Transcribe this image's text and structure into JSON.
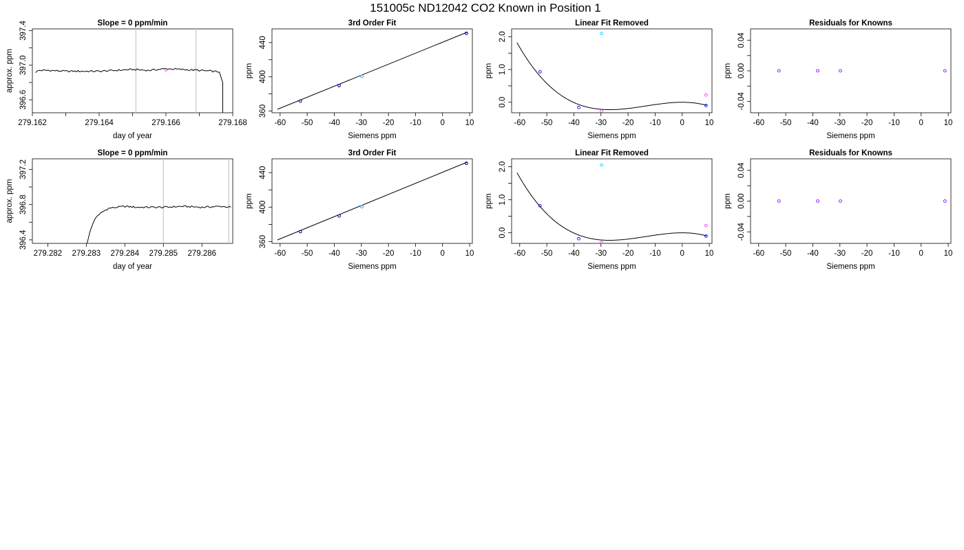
{
  "figure_title": "151005c     ND12042   CO2 Known in Position  1",
  "colors": {
    "trace": "#000000",
    "fit": "#000000",
    "vline": "#c8c8c8",
    "blue": "#0000ff",
    "cyan": "#00c8ff",
    "magenta": "#e040e0",
    "purple": "#8000ff",
    "navy": "#00008b"
  },
  "chart_data": [
    {
      "type": "line",
      "title": "Slope =  0  ppm/min",
      "xlabel": "day of year",
      "ylabel": "approx. ppm",
      "xlim": [
        279.162,
        279.168
      ],
      "ylim": [
        396.45,
        397.42
      ],
      "xticks": [
        279.162,
        279.164,
        279.166,
        279.168
      ],
      "xtick_labels": [
        "279.162",
        "279.164",
        "279.166",
        "279.168"
      ],
      "yticks": [
        396.6,
        397.0,
        397.4
      ],
      "ytick_labels": [
        "396.6",
        "397.0",
        "397.4"
      ],
      "minor_xticks": [
        279.163,
        279.165,
        279.167
      ],
      "minor_yticks": [
        396.8,
        397.2
      ],
      "vlines": [
        279.1651,
        279.1669
      ],
      "series": [
        {
          "x": [
            279.1621,
            279.1622,
            279.1625,
            279.163,
            279.1635,
            279.164,
            279.1645,
            279.165,
            279.1655,
            279.166,
            279.1665,
            279.167,
            279.1674,
            279.1676,
            279.1677,
            279.1677
          ],
          "values": [
            396.92,
            396.94,
            396.94,
            396.93,
            396.93,
            396.93,
            396.94,
            396.95,
            396.94,
            396.96,
            396.95,
            396.94,
            396.93,
            396.92,
            396.8,
            396.45
          ]
        }
      ],
      "wiggle": 0.02,
      "markers": [
        {
          "x": 279.166,
          "y": 396.945,
          "color": "magenta"
        }
      ]
    },
    {
      "type": "scatter",
      "title": "3rd Order Fit",
      "xlabel": "Siemens ppm",
      "ylabel": "ppm",
      "xlim": [
        -63,
        11
      ],
      "ylim": [
        358,
        456
      ],
      "xticks": [
        -60,
        -50,
        -40,
        -30,
        -20,
        -10,
        0,
        10
      ],
      "xtick_labels": [
        "-60",
        "-50",
        "-40",
        "-30",
        "-20",
        "-10",
        "0",
        "10"
      ],
      "yticks": [
        360,
        400,
        440
      ],
      "ytick_labels": [
        "360",
        "400",
        "440"
      ],
      "minor_yticks": [
        380,
        420
      ],
      "curve": {
        "type": "line",
        "p0": [
          -61,
          362
        ],
        "p1": [
          9,
          452
        ]
      },
      "points": [
        {
          "x": -52.5,
          "y": 371.6,
          "color": "blue"
        },
        {
          "x": -52.5,
          "y": 371.6,
          "color": "navy"
        },
        {
          "x": -38.2,
          "y": 389.8,
          "color": "blue"
        },
        {
          "x": -38.2,
          "y": 389.8,
          "color": "navy"
        },
        {
          "x": -29.8,
          "y": 400.5,
          "color": "magenta"
        },
        {
          "x": -29.8,
          "y": 400.5,
          "color": "cyan"
        },
        {
          "x": 8.8,
          "y": 450.8,
          "color": "blue"
        },
        {
          "x": 8.8,
          "y": 450.8,
          "color": "navy"
        }
      ]
    },
    {
      "type": "scatter",
      "title": "Linear Fit Removed",
      "xlabel": "Siemens ppm",
      "ylabel": "ppm",
      "xlim": [
        -63,
        11
      ],
      "ylim": [
        -0.32,
        2.24
      ],
      "xticks": [
        -60,
        -50,
        -40,
        -30,
        -20,
        -10,
        0,
        10
      ],
      "xtick_labels": [
        "-60",
        "-50",
        "-40",
        "-30",
        "-20",
        "-10",
        "0",
        "10"
      ],
      "yticks": [
        0,
        1,
        2
      ],
      "ytick_labels": [
        "0.0",
        "1.0",
        "2.0"
      ],
      "minor_yticks": [
        0.5,
        1.5
      ],
      "curve": {
        "type": "cubic",
        "from": -61,
        "to": 9,
        "coef": [
          0,
          0,
          -0.000945,
          -2.35e-05
        ]
      },
      "points": [
        {
          "x": -52.5,
          "y": 0.93,
          "color": "blue"
        },
        {
          "x": -38.2,
          "y": -0.16,
          "color": "blue"
        },
        {
          "x": -29.8,
          "y": -0.27,
          "color": "magenta"
        },
        {
          "x": -29.8,
          "y": 2.1,
          "color": "cyan"
        },
        {
          "x": 8.8,
          "y": 0.22,
          "color": "magenta"
        },
        {
          "x": 8.8,
          "y": -0.1,
          "color": "blue"
        }
      ]
    },
    {
      "type": "scatter",
      "title": "Residuals for Knowns",
      "xlabel": "Siemens ppm",
      "ylabel": "ppm",
      "xlim": [
        -63,
        11
      ],
      "ylim": [
        -0.055,
        0.055
      ],
      "xticks": [
        -60,
        -50,
        -40,
        -30,
        -20,
        -10,
        0,
        10
      ],
      "xtick_labels": [
        "-60",
        "-50",
        "-40",
        "-30",
        "-20",
        "-10",
        "0",
        "10"
      ],
      "yticks": [
        -0.04,
        0,
        0.04
      ],
      "ytick_labels": [
        "-0.04",
        "0.00",
        "0.04"
      ],
      "minor_yticks": [
        -0.02,
        0.02
      ],
      "points": [
        {
          "x": -52.5,
          "y": 0,
          "color": "purple"
        },
        {
          "x": -38.2,
          "y": 0,
          "color": "purple"
        },
        {
          "x": -29.8,
          "y": 0,
          "color": "purple"
        },
        {
          "x": 8.8,
          "y": 0,
          "color": "purple"
        }
      ]
    },
    {
      "type": "line",
      "title": "Slope =  0  ppm/min",
      "xlabel": "day of year",
      "ylabel": "approx. ppm",
      "xlim": [
        279.2816,
        279.2868
      ],
      "ylim": [
        396.36,
        397.32
      ],
      "xticks": [
        279.282,
        279.283,
        279.284,
        279.285,
        279.286
      ],
      "xtick_labels": [
        "279.282",
        "279.283",
        "279.284",
        "279.285",
        "279.286"
      ],
      "yticks": [
        396.4,
        396.8,
        397.2
      ],
      "ytick_labels": [
        "396.4",
        "396.8",
        "397.2"
      ],
      "minor_yticks": [
        396.6,
        397.0
      ],
      "vlines": [
        279.285,
        279.2867
      ],
      "series": [
        {
          "x": [
            279.28302,
            279.2831,
            279.2832,
            279.2833,
            279.2834,
            279.2835,
            279.2836,
            279.2838,
            279.284,
            279.2843,
            279.2846,
            279.285,
            279.2855,
            279.286,
            279.2865,
            279.28675
          ],
          "values": [
            396.36,
            396.5,
            396.62,
            396.68,
            396.71,
            396.74,
            396.76,
            396.77,
            396.78,
            396.77,
            396.77,
            396.77,
            396.78,
            396.77,
            396.78,
            396.77
          ]
        }
      ],
      "wiggle": 0.02,
      "markers": []
    },
    {
      "type": "scatter",
      "title": "3rd Order Fit",
      "xlabel": "Siemens ppm",
      "ylabel": "ppm",
      "xlim": [
        -63,
        11
      ],
      "ylim": [
        358,
        456
      ],
      "xticks": [
        -60,
        -50,
        -40,
        -30,
        -20,
        -10,
        0,
        10
      ],
      "xtick_labels": [
        "-60",
        "-50",
        "-40",
        "-30",
        "-20",
        "-10",
        "0",
        "10"
      ],
      "yticks": [
        360,
        400,
        440
      ],
      "ytick_labels": [
        "360",
        "400",
        "440"
      ],
      "minor_yticks": [
        380,
        420
      ],
      "curve": {
        "type": "line",
        "p0": [
          -61,
          362
        ],
        "p1": [
          9,
          452
        ]
      },
      "points": [
        {
          "x": -52.5,
          "y": 371.6,
          "color": "blue"
        },
        {
          "x": -52.5,
          "y": 371.6,
          "color": "navy"
        },
        {
          "x": -38.2,
          "y": 389.8,
          "color": "blue"
        },
        {
          "x": -38.2,
          "y": 389.8,
          "color": "navy"
        },
        {
          "x": -29.8,
          "y": 400.5,
          "color": "magenta"
        },
        {
          "x": -29.8,
          "y": 400.5,
          "color": "cyan"
        },
        {
          "x": 8.8,
          "y": 450.8,
          "color": "blue"
        },
        {
          "x": 8.8,
          "y": 450.8,
          "color": "navy"
        }
      ]
    },
    {
      "type": "scatter",
      "title": "Linear Fit Removed",
      "xlabel": "Siemens ppm",
      "ylabel": "ppm",
      "xlim": [
        -63,
        11
      ],
      "ylim": [
        -0.32,
        2.24
      ],
      "xticks": [
        -60,
        -50,
        -40,
        -30,
        -20,
        -10,
        0,
        10
      ],
      "xtick_labels": [
        "-60",
        "-50",
        "-40",
        "-30",
        "-20",
        "-10",
        "0",
        "10"
      ],
      "yticks": [
        0,
        1,
        2
      ],
      "ytick_labels": [
        "0.0",
        "1.0",
        "2.0"
      ],
      "minor_yticks": [
        0.5,
        1.5
      ],
      "curve": {
        "type": "cubic",
        "from": -61,
        "to": 9,
        "coef": [
          0,
          0,
          -0.000945,
          -2.35e-05
        ]
      },
      "points": [
        {
          "x": -52.5,
          "y": 0.82,
          "color": "blue"
        },
        {
          "x": -38.2,
          "y": -0.18,
          "color": "blue"
        },
        {
          "x": -29.8,
          "y": -0.29,
          "color": "magenta"
        },
        {
          "x": -29.8,
          "y": 2.05,
          "color": "cyan"
        },
        {
          "x": 8.8,
          "y": 0.22,
          "color": "magenta"
        },
        {
          "x": 8.8,
          "y": -0.1,
          "color": "blue"
        }
      ]
    },
    {
      "type": "scatter",
      "title": "Residuals for Knowns",
      "xlabel": "Siemens ppm",
      "ylabel": "ppm",
      "xlim": [
        -63,
        11
      ],
      "ylim": [
        -0.055,
        0.055
      ],
      "xticks": [
        -60,
        -50,
        -40,
        -30,
        -20,
        -10,
        0,
        10
      ],
      "xtick_labels": [
        "-60",
        "-50",
        "-40",
        "-30",
        "-20",
        "-10",
        "0",
        "10"
      ],
      "yticks": [
        -0.04,
        0,
        0.04
      ],
      "ytick_labels": [
        "-0.04",
        "0.00",
        "0.04"
      ],
      "minor_yticks": [
        -0.02,
        0.02
      ],
      "points": [
        {
          "x": -52.5,
          "y": 0,
          "color": "purple"
        },
        {
          "x": -38.2,
          "y": 0,
          "color": "purple"
        },
        {
          "x": -29.8,
          "y": 0,
          "color": "purple"
        },
        {
          "x": 8.8,
          "y": 0,
          "color": "purple"
        }
      ]
    }
  ]
}
